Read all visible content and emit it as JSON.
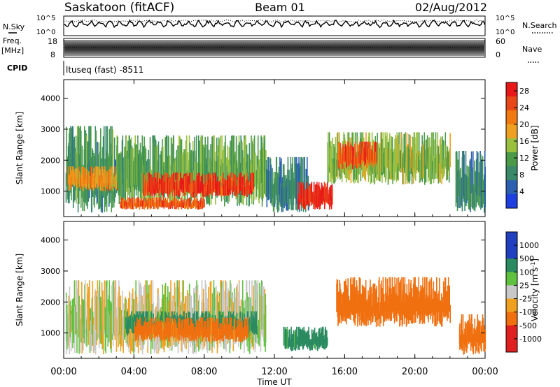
{
  "header": {
    "station": "Saskatoon (fitACF)",
    "beam": "Beam 01",
    "date": "02/Aug/2012"
  },
  "top_panels": {
    "nsky_label": "N.Sky",
    "nsky_tick_top": "10^5",
    "nsky_tick_bottom": "10^0",
    "nsearch_label": "N.Search",
    "nsearch_tick_top": "10^5",
    "nsearch_tick_bottom": "10^0",
    "freq_label": "Freq.",
    "freq_unit": "[MHz]",
    "freq_tick_top": "18",
    "freq_tick_bottom": "8",
    "nave_label": "Nave",
    "nave_tick_top": "60",
    "nave_tick_bottom": "0",
    "cpid_label": "CPID",
    "cpid_text": "ltuseq (fast) -8511"
  },
  "x_axis": {
    "label": "Time UT",
    "ticks": [
      "00:00",
      "04:00",
      "08:00",
      "12:00",
      "16:00",
      "20:00",
      "00:00"
    ]
  },
  "colors": {
    "power_scale": [
      "#1f3fe0",
      "#2b5fb0",
      "#3a8a6a",
      "#4a9a4a",
      "#9ac040",
      "#f0a020",
      "#f07a10",
      "#e84818",
      "#e81818"
    ],
    "velocity_scale": [
      "#2040c0",
      "#2a8a60",
      "#60c040",
      "#c8c8c8",
      "#f0a020",
      "#f07010",
      "#e02020"
    ]
  },
  "chart_data": [
    {
      "type": "heatmap",
      "title": "Power",
      "xlabel": "Time UT",
      "ylabel": "Slant Range [km]",
      "x_range_hours": [
        0,
        24
      ],
      "ylim": [
        180,
        4600
      ],
      "y_ticks": [
        1000,
        2000,
        3000,
        4000
      ],
      "colorbar_label": "Power [dB]",
      "colorbar_ticks": [
        "4",
        "8",
        "12",
        "16",
        "20",
        "24",
        "28"
      ],
      "colorbar_range": [
        0,
        30
      ],
      "regions": [
        {
          "t0": 0.1,
          "t1": 3.0,
          "r0": 300,
          "r1": 3100,
          "value": 10
        },
        {
          "t0": 0.2,
          "t1": 3.2,
          "r0": 1000,
          "r1": 1800,
          "value": 20
        },
        {
          "t0": 3.0,
          "t1": 11.5,
          "r0": 500,
          "r1": 2800,
          "value": 12
        },
        {
          "t0": 4.5,
          "t1": 10.8,
          "r0": 800,
          "r1": 1600,
          "value": 26
        },
        {
          "t0": 3.2,
          "t1": 8.0,
          "r0": 400,
          "r1": 800,
          "value": 24
        },
        {
          "t0": 11.5,
          "t1": 14.0,
          "r0": 300,
          "r1": 2100,
          "value": 8
        },
        {
          "t0": 13.3,
          "t1": 15.3,
          "r0": 400,
          "r1": 1300,
          "value": 27
        },
        {
          "t0": 15.0,
          "t1": 22.0,
          "r0": 1200,
          "r1": 2900,
          "value": 14
        },
        {
          "t0": 15.6,
          "t1": 17.8,
          "r0": 1700,
          "r1": 2600,
          "value": 24
        },
        {
          "t0": 22.3,
          "t1": 24.0,
          "r0": 300,
          "r1": 2300,
          "value": 9
        }
      ]
    },
    {
      "type": "heatmap",
      "title": "Velocity",
      "xlabel": "Time UT",
      "ylabel": "Slant Range [km]",
      "x_range_hours": [
        0,
        24
      ],
      "ylim": [
        180,
        4600
      ],
      "y_ticks": [
        1000,
        2000,
        3000,
        4000
      ],
      "colorbar_label": "Velocity [m s^-1]",
      "colorbar_ticks": [
        "1000",
        "500",
        "100",
        "25",
        "-25",
        "-100",
        "-500",
        "-1000"
      ],
      "regions": [
        {
          "t0": 0.1,
          "t1": 11.5,
          "r0": 300,
          "r1": 2700,
          "value": 0
        },
        {
          "t0": 3.5,
          "t1": 11.0,
          "r0": 900,
          "r1": 1700,
          "value": 150
        },
        {
          "t0": 4.0,
          "t1": 10.5,
          "r0": 700,
          "r1": 1500,
          "value": -150
        },
        {
          "t0": 12.5,
          "t1": 15.0,
          "r0": 400,
          "r1": 1200,
          "value": 150
        },
        {
          "t0": 15.5,
          "t1": 22.0,
          "r0": 1200,
          "r1": 2800,
          "value": -400
        },
        {
          "t0": 22.5,
          "t1": 24.0,
          "r0": 300,
          "r1": 1600,
          "value": -400
        }
      ]
    }
  ]
}
